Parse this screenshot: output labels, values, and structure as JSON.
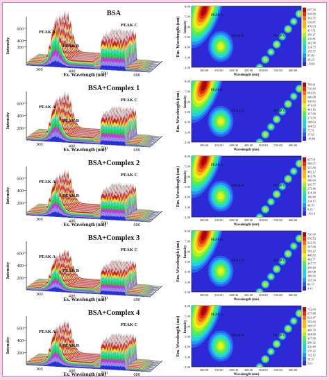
{
  "colors": {
    "surface_bands": [
      "#1f2bd8",
      "#8f8fe8",
      "#cc33dd",
      "#20d63a",
      "#21d8d8",
      "#e7e736",
      "#d3191c",
      "#b9b9b9"
    ],
    "contour_levels": [
      "#2e29d6",
      "#2f5bef",
      "#1e98f2",
      "#25cfe0",
      "#2fe5a2",
      "#57ee51",
      "#a9f128",
      "#f1ee1c",
      "#f8b915",
      "#f46f13",
      "#e62a12",
      "#a40a0b"
    ],
    "background": "#f6d3e6"
  },
  "common": {
    "y_axis_label": "Intensity",
    "x_axis_label": "Ex. Wavelength (nm)",
    "peak_a": "PEAK A",
    "peak_b": "PEAK B",
    "peak_c": "PEAK C",
    "contour_y_label": "Em. Wavelength (nm)",
    "contour_x_label": "Wavelength (nm)",
    "contour_y_ticks": [
      "2.00",
      "3.00",
      "4.00",
      "5.00",
      "6.00",
      "7.00",
      "8.00"
    ],
    "contour_x_ticks": [
      "300.00",
      "350.00",
      "400.00",
      "450.00",
      "500.00",
      "550.00",
      "600.00"
    ]
  },
  "chart_data": [
    {
      "type": "surface3d",
      "title": "BSA",
      "y_ticks": [
        "300",
        "400",
        "600"
      ],
      "x_ticks": [
        "300",
        "400",
        "500",
        "600"
      ],
      "peak_a": 590,
      "peak_b": 250,
      "peak_c": 520,
      "legend": [
        "697.34",
        "638.80",
        "592.55",
        "516.87",
        "476.03",
        "417.51",
        "359.27",
        "310.81",
        "262.58",
        "214.75",
        "155.57",
        "97.00",
        "39.23",
        "-19.61"
      ]
    },
    {
      "type": "surface3d",
      "title": "BSA+Complex 1",
      "y_ticks": [
        "200",
        "400",
        "600"
      ],
      "x_ticks": [
        "300",
        "400",
        "500",
        "600"
      ],
      "peak_a": 520,
      "peak_b": 180,
      "peak_c": 470,
      "legend": [
        "789.61",
        "716.60",
        "663.65",
        "600.08",
        "536.63",
        "471.93",
        "401.16",
        "337.80",
        "273.50",
        "208.03",
        "144.52",
        "77.71",
        "17.63",
        "-46.80"
      ]
    },
    {
      "type": "surface3d",
      "title": "BSA+Complex 2",
      "y_ticks": [
        "200",
        "400",
        "600"
      ],
      "x_ticks": [
        "300",
        "400",
        "500",
        "600"
      ],
      "peak_a": 480,
      "peak_b": 160,
      "peak_c": 440,
      "legend": [
        "637.91",
        "589.57",
        "535.68",
        "482.12",
        "432.56",
        "380.00",
        "326.77",
        "273.46",
        "214.28",
        "166.88",
        "114.15",
        "60.70",
        "8.35",
        "-43.14"
      ]
    },
    {
      "type": "surface3d",
      "title": "BSA+Complex 3",
      "y_ticks": [
        "200",
        "400",
        "600"
      ],
      "x_ticks": [
        "300",
        "400",
        "500",
        "600"
      ],
      "peak_a": 420,
      "peak_b": 150,
      "peak_c": 410,
      "legend": [
        "726.99",
        "676.53",
        "622.56",
        "567.80",
        "502.22",
        "448.82",
        "402.77",
        "347.77",
        "299.68",
        "240.98",
        "189.95",
        "135.54",
        "84.15",
        "4.41"
      ]
    },
    {
      "type": "surface3d",
      "title": "BSA+Complex 4",
      "y_ticks": [
        "200",
        "400",
        "600"
      ],
      "x_ticks": [
        "300",
        "400",
        "500",
        "600"
      ],
      "peak_a": 470,
      "peak_b": 170,
      "peak_c": 430,
      "legend": [
        "732.64",
        "677.88",
        "622.47",
        "563.60",
        "509.97",
        "449.78",
        "394.88",
        "337.08",
        "280.32",
        "226.88",
        "170.25",
        "112.12",
        "58.37",
        "5.61"
      ]
    }
  ]
}
